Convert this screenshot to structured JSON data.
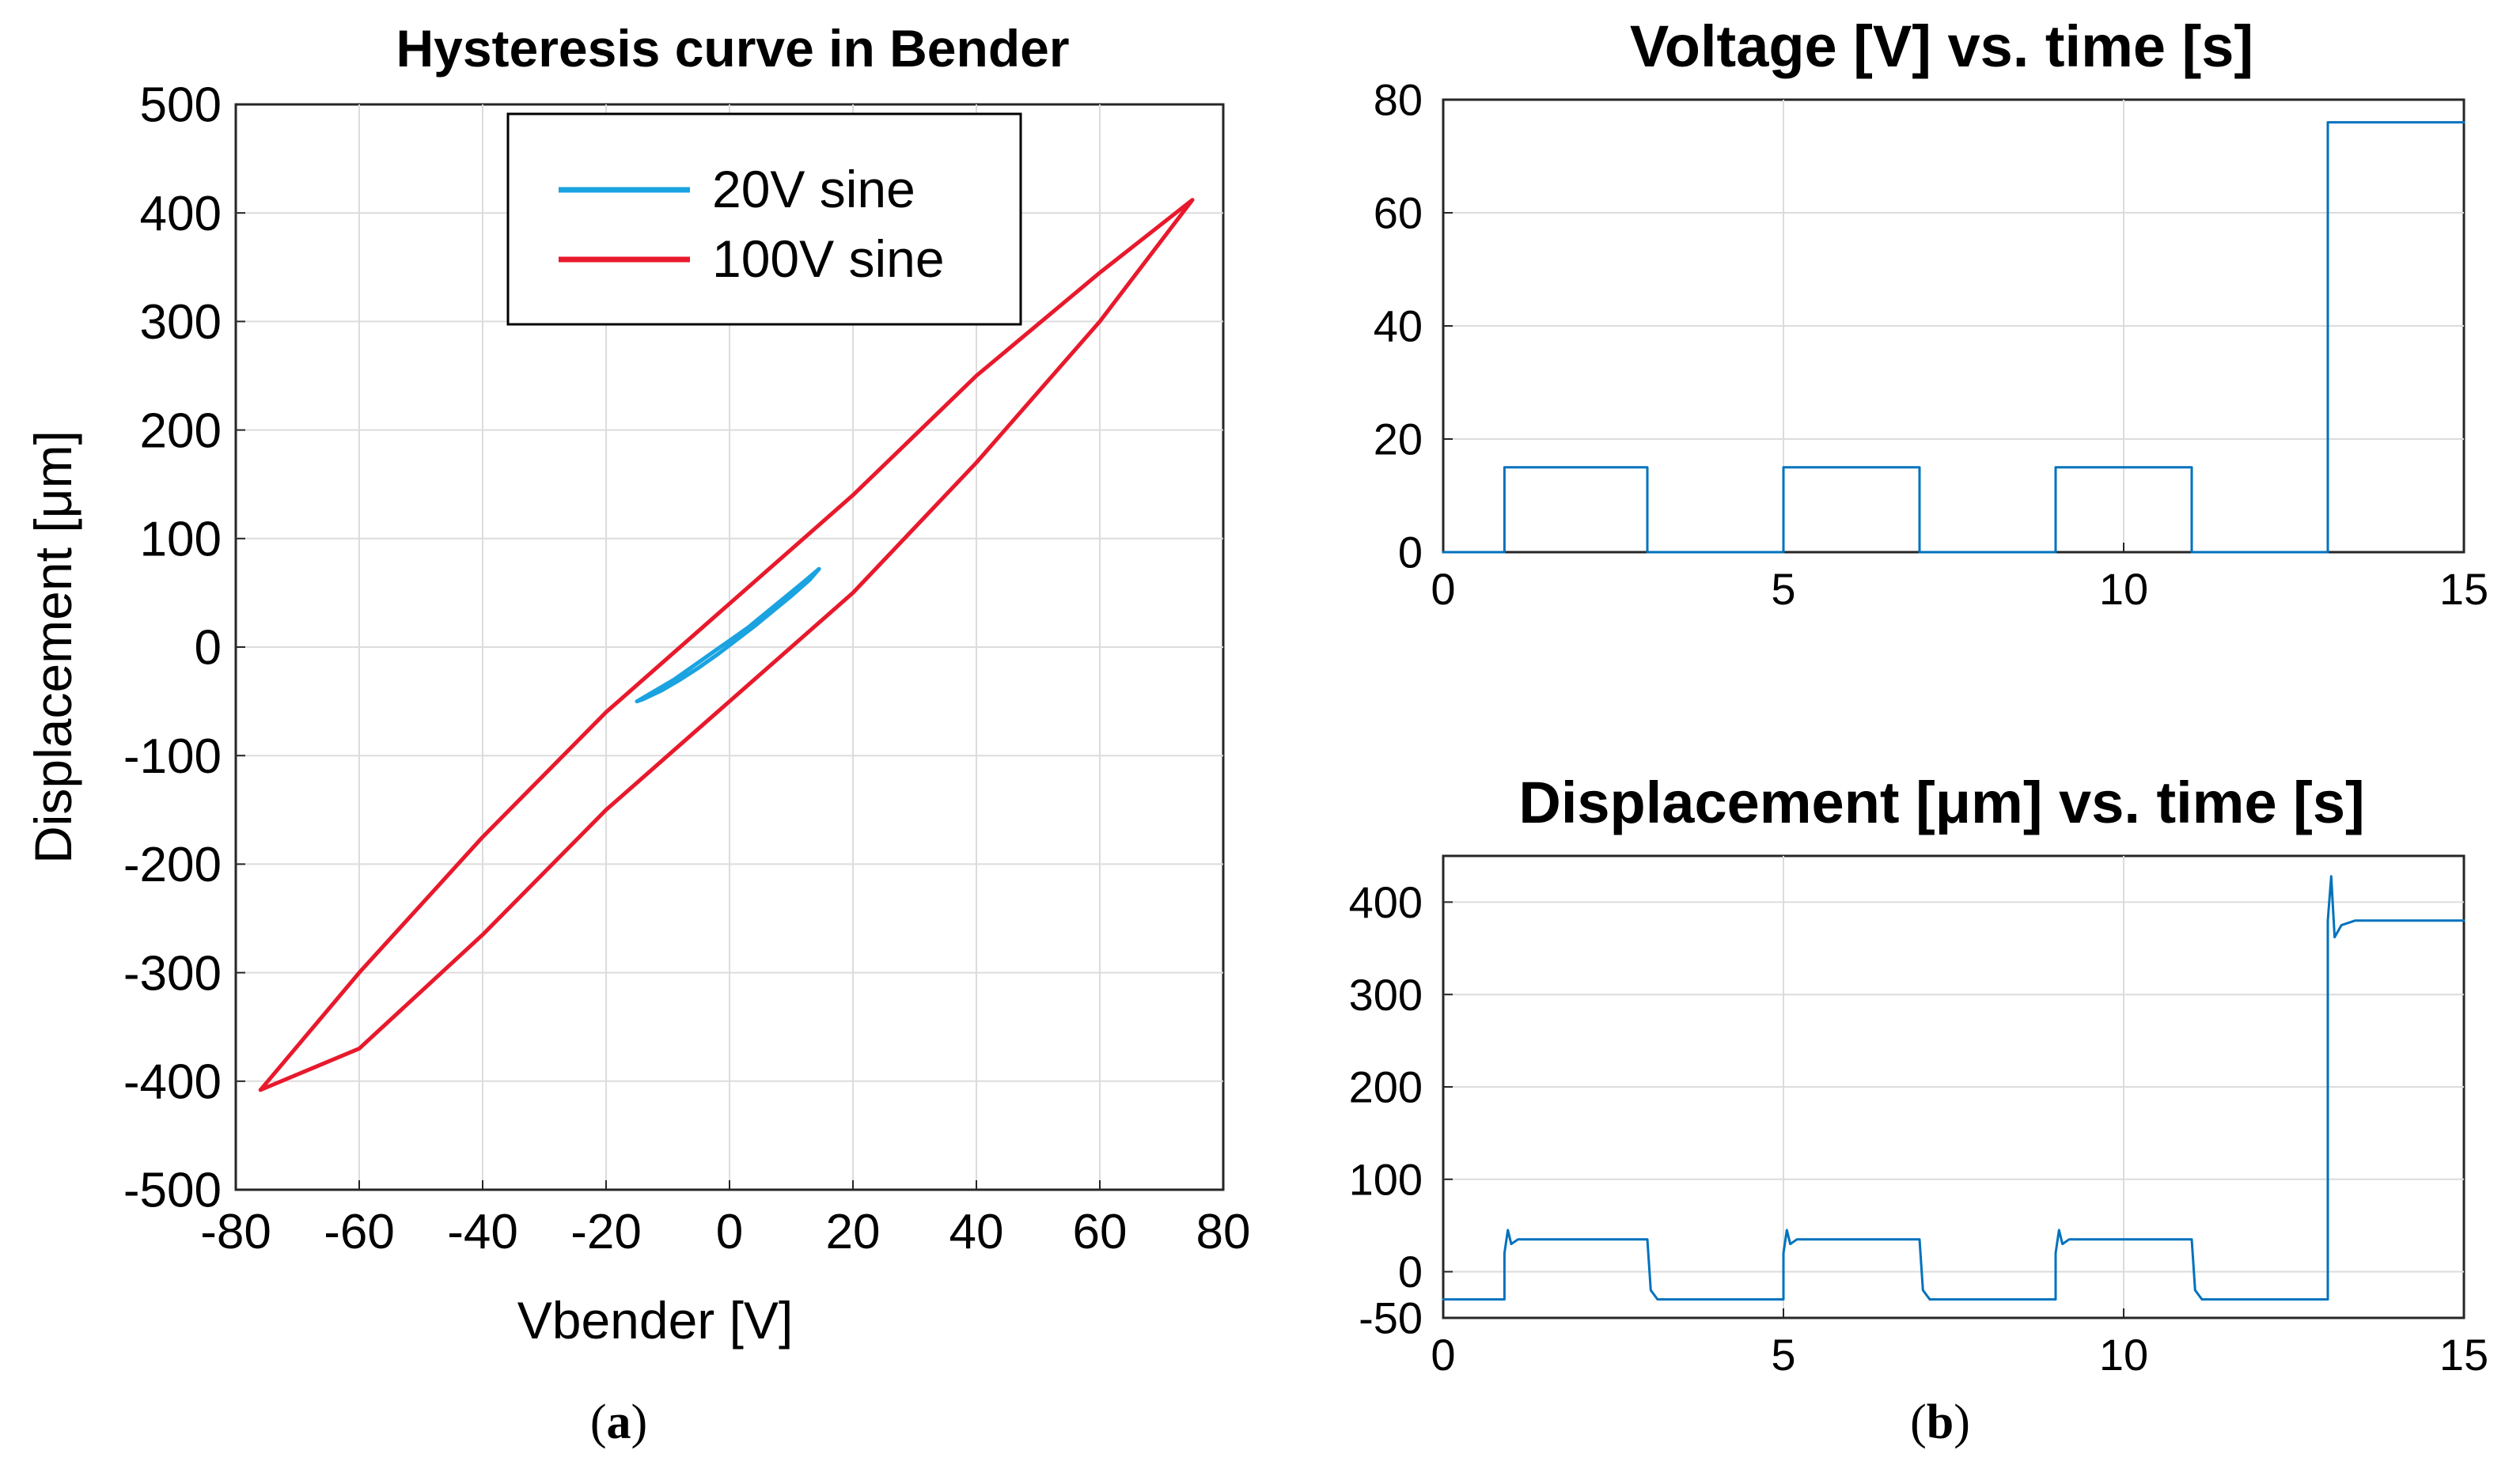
{
  "captions": {
    "a": "a",
    "b": "b"
  },
  "chart_data": [
    {
      "id": "hysteresis",
      "type": "line",
      "title": "Hysteresis curve in Bender",
      "xlabel": "Vbender [V]",
      "ylabel": "Displacement [μm]",
      "xlim": [
        -80,
        80
      ],
      "ylim": [
        -500,
        500
      ],
      "xticks": [
        -80,
        -60,
        -40,
        -20,
        0,
        20,
        40,
        60,
        80
      ],
      "yticks": [
        -500,
        -400,
        -300,
        -200,
        -100,
        0,
        100,
        200,
        300,
        400,
        500
      ],
      "xtick_labels": [
        "-80",
        "-60",
        "-40",
        "-20",
        "0",
        "20",
        "40",
        "60",
        "80"
      ],
      "ytick_labels": [
        "-500",
        "-400",
        "-300",
        "-200",
        "-100",
        "0",
        "100",
        "200",
        "300",
        "400",
        "500"
      ],
      "grid": true,
      "legend_position": "top-center",
      "series": [
        {
          "name": "20V sine",
          "color": "#1aa3e0",
          "x": [
            -15,
            -12,
            -9,
            -6,
            -3,
            0,
            3,
            6,
            9,
            12,
            14.5,
            13,
            10,
            7,
            4,
            1,
            -2,
            -5,
            -8,
            -11,
            -14,
            -15
          ],
          "y": [
            -50,
            -40,
            -30,
            -18,
            -6,
            6,
            18,
            32,
            46,
            60,
            72,
            62,
            47,
            33,
            19,
            6,
            -7,
            -19,
            -30,
            -40,
            -48,
            -50
          ]
        },
        {
          "name": "100V sine",
          "color": "#e8192c",
          "x": [
            -76,
            -60,
            -40,
            -20,
            0,
            20,
            40,
            60,
            75,
            60,
            40,
            20,
            0,
            -20,
            -40,
            -60,
            -76
          ],
          "y": [
            -408,
            -300,
            -175,
            -60,
            40,
            140,
            250,
            345,
            412,
            300,
            170,
            50,
            -50,
            -150,
            -265,
            -370,
            -408
          ]
        }
      ]
    },
    {
      "id": "voltage",
      "type": "line",
      "title": "Voltage [V] vs. time [s]",
      "xlim": [
        0,
        15
      ],
      "ylim": [
        0,
        80
      ],
      "xticks": [
        0,
        5,
        10,
        15
      ],
      "yticks": [
        0,
        20,
        40,
        60,
        80
      ],
      "xtick_labels": [
        "0",
        "5",
        "10",
        "15"
      ],
      "ytick_labels": [
        "0",
        "20",
        "40",
        "60",
        "80"
      ],
      "grid": true,
      "series": [
        {
          "name": "Voltage",
          "color": "#0072bd",
          "x": [
            0,
            0.9,
            0.9,
            3,
            3,
            5,
            5,
            7,
            7,
            9,
            9,
            11,
            11,
            13,
            13,
            15
          ],
          "y": [
            0,
            0,
            15,
            15,
            0,
            0,
            15,
            15,
            0,
            0,
            15,
            15,
            0,
            0,
            76,
            76
          ]
        }
      ]
    },
    {
      "id": "displacement",
      "type": "line",
      "title": "Displacement [μm] vs. time [s]",
      "xlim": [
        0,
        15
      ],
      "ylim": [
        -50,
        450
      ],
      "xticks": [
        0,
        5,
        10,
        15
      ],
      "yticks": [
        -50,
        0,
        100,
        200,
        300,
        400
      ],
      "xtick_labels": [
        "0",
        "5",
        "10",
        "15"
      ],
      "ytick_labels": [
        "-50",
        "0",
        "100",
        "200",
        "300",
        "400"
      ],
      "grid": true,
      "series": [
        {
          "name": "Displacement",
          "color": "#0072bd",
          "x": [
            0,
            0.9,
            0.9,
            0.95,
            1.0,
            1.1,
            3,
            3,
            3.05,
            3.15,
            5,
            5,
            5.05,
            5.1,
            5.2,
            7,
            7,
            7.05,
            7.15,
            9,
            9,
            9.05,
            9.1,
            9.2,
            11,
            11,
            11.05,
            11.15,
            13,
            13,
            13.05,
            13.1,
            13.2,
            13.4,
            15
          ],
          "y": [
            -30,
            -30,
            20,
            45,
            30,
            35,
            35,
            35,
            -20,
            -30,
            -30,
            20,
            45,
            30,
            35,
            35,
            35,
            -20,
            -30,
            -30,
            20,
            45,
            30,
            35,
            35,
            35,
            -20,
            -30,
            -30,
            380,
            428,
            362,
            375,
            380,
            380
          ]
        }
      ]
    }
  ]
}
